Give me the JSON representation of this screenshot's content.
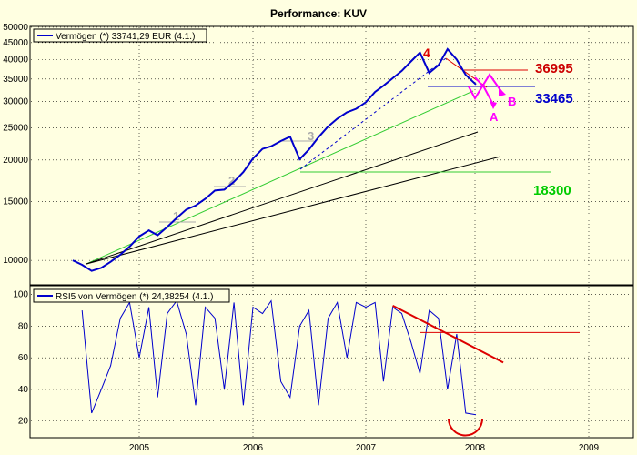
{
  "chart_data": [
    {
      "type": "line",
      "title": "Performance: KUV",
      "legend": "Vermögen (*) 33741,29 EUR (4.1.)",
      "legend_position": "top-left",
      "grid": true,
      "y_scale": "log",
      "ylim": [
        8500,
        50000
      ],
      "y_ticks": [
        10000,
        15000,
        20000,
        25000,
        30000,
        35000,
        40000,
        45000,
        50000
      ],
      "x_ticks": [
        "2005",
        "2006",
        "2007",
        "2008",
        "2009"
      ],
      "series": [
        {
          "name": "Vermögen (*)",
          "color": "#0000cc",
          "x": [
            "2004-06-01",
            "2004-07-01",
            "2004-08-01",
            "2004-09-01",
            "2004-10-01",
            "2004-11-01",
            "2004-12-01",
            "2005-01-01",
            "2005-02-01",
            "2005-03-01",
            "2005-04-01",
            "2005-05-01",
            "2005-06-01",
            "2005-07-01",
            "2005-08-01",
            "2005-09-01",
            "2005-10-01",
            "2005-11-01",
            "2005-12-01",
            "2006-01-01",
            "2006-02-01",
            "2006-03-01",
            "2006-04-01",
            "2006-05-01",
            "2006-06-01",
            "2006-07-01",
            "2006-08-01",
            "2006-09-01",
            "2006-10-01",
            "2006-11-01",
            "2006-12-01",
            "2007-01-01",
            "2007-02-01",
            "2007-03-01",
            "2007-04-01",
            "2007-05-01",
            "2007-06-01",
            "2007-07-01",
            "2007-08-01",
            "2007-09-01",
            "2007-10-01",
            "2007-11-01",
            "2007-12-01",
            "2008-01-04"
          ],
          "values": [
            10000,
            9700,
            9300,
            9500,
            9900,
            10400,
            11000,
            11800,
            12300,
            11900,
            12600,
            13400,
            14200,
            14600,
            15300,
            16200,
            16300,
            17200,
            18400,
            20200,
            21600,
            22000,
            22800,
            23500,
            20100,
            21500,
            23400,
            25200,
            26600,
            27800,
            28500,
            29800,
            32000,
            33400,
            35200,
            37000,
            39500,
            42000,
            36500,
            38500,
            43000,
            40000,
            36000,
            33700
          ]
        }
      ],
      "annotations": [
        {
          "text": "1",
          "color": "#aaaaaa"
        },
        {
          "text": "2",
          "color": "#aaaaaa"
        },
        {
          "text": "3",
          "color": "#aaaaaa"
        },
        {
          "text": "4",
          "color": "#dd0000"
        },
        {
          "text": "36995",
          "color": "#cc0000",
          "value": 36995
        },
        {
          "text": "33465",
          "color": "#0000cc",
          "value": 33465
        },
        {
          "text": "18300",
          "color": "#00cc00",
          "value": 18300
        },
        {
          "text": "A",
          "color": "#ff00ff"
        },
        {
          "text": "B",
          "color": "#ff00ff"
        }
      ]
    },
    {
      "type": "line",
      "legend": "RSI5 von Vermögen (*) 24,38254 (4.1.)",
      "legend_position": "top-left",
      "grid": true,
      "ylim": [
        10,
        105
      ],
      "y_ticks": [
        20,
        40,
        60,
        80,
        100
      ],
      "x_ticks": [
        "2005",
        "2006",
        "2007",
        "2008",
        "2009"
      ],
      "series": [
        {
          "name": "RSI5 von Vermögen (*)",
          "color": "#0000cc",
          "x": [
            "2004-07-01",
            "2004-08-01",
            "2004-09-01",
            "2004-10-01",
            "2004-11-01",
            "2004-12-01",
            "2005-01-01",
            "2005-02-01",
            "2005-03-01",
            "2005-04-01",
            "2005-05-01",
            "2005-06-01",
            "2005-07-01",
            "2005-08-01",
            "2005-09-01",
            "2005-10-01",
            "2005-11-01",
            "2005-12-01",
            "2006-01-01",
            "2006-02-01",
            "2006-03-01",
            "2006-04-01",
            "2006-05-01",
            "2006-06-01",
            "2006-07-01",
            "2006-08-01",
            "2006-09-01",
            "2006-10-01",
            "2006-11-01",
            "2006-12-01",
            "2007-01-01",
            "2007-02-01",
            "2007-03-01",
            "2007-04-01",
            "2007-05-01",
            "2007-06-01",
            "2007-07-01",
            "2007-08-01",
            "2007-09-01",
            "2007-10-01",
            "2007-11-01",
            "2007-12-01",
            "2008-01-04"
          ],
          "values": [
            90,
            25,
            40,
            55,
            85,
            95,
            60,
            92,
            35,
            88,
            96,
            75,
            30,
            92,
            85,
            40,
            95,
            30,
            92,
            88,
            96,
            45,
            35,
            80,
            90,
            30,
            85,
            95,
            60,
            95,
            92,
            95,
            45,
            92,
            88,
            70,
            50,
            90,
            85,
            40,
            75,
            25,
            24
          ]
        }
      ],
      "annotations": [
        {
          "text": "resistance-line",
          "color": "#dd0000",
          "from": {
            "x": "2007-04-01",
            "y": 93
          },
          "to": {
            "x": "2008-04-01",
            "y": 57
          }
        },
        {
          "text": "level-line",
          "color": "#dd0000",
          "value": 76
        }
      ]
    }
  ]
}
